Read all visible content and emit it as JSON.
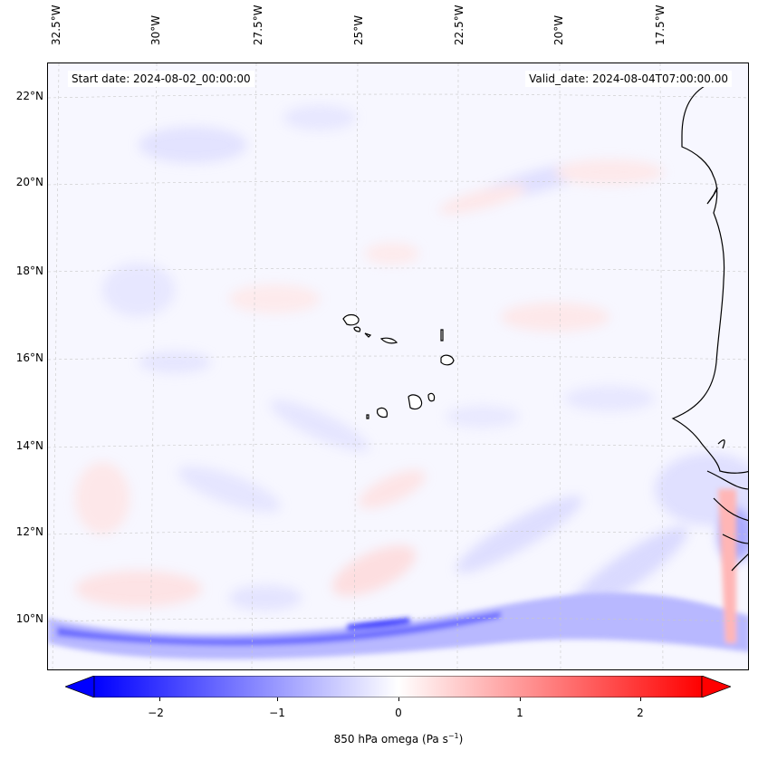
{
  "map": {
    "start_date": "Start date: 2024-08-02_00:00:00",
    "valid_date": "Valid_date: 2024-08-04T07:00:00.00",
    "lon_labels": [
      "32.5°W",
      "30°W",
      "27.5°W",
      "25°W",
      "22.5°W",
      "20°W",
      "17.5°W"
    ],
    "lat_labels": [
      "22°N",
      "20°N",
      "18°N",
      "16°N",
      "14°N",
      "12°N",
      "10°N"
    ],
    "gridlines": true,
    "features": [
      "coastline-west-africa",
      "cape-verde-islands"
    ]
  },
  "colorbar": {
    "label": "850 hPa omega (Pa s⁻¹)",
    "label_prefix": "850 hPa omega (Pa s",
    "label_sup": "−1",
    "label_suffix": ")",
    "ticks": [
      "−2",
      "−1",
      "0",
      "1",
      "2"
    ],
    "min_color": "#0000ff",
    "mid_color": "#ffffff",
    "max_color": "#ff0000",
    "extend": "both"
  }
}
